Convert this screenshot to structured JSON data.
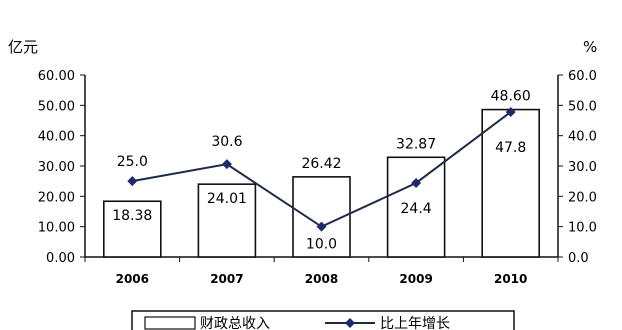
{
  "chart_data": {
    "type": "bar",
    "categories": [
      "2006",
      "2007",
      "2008",
      "2009",
      "2010"
    ],
    "series": [
      {
        "name": "财政总收入",
        "type": "bar",
        "axis": "left",
        "values": [
          18.38,
          24.01,
          26.42,
          32.87,
          48.6
        ],
        "labels": [
          "18.38",
          "24.01",
          "26.42",
          "32.87",
          "48.60"
        ]
      },
      {
        "name": "比上年增长",
        "type": "line",
        "axis": "right",
        "values": [
          25.0,
          30.6,
          10.0,
          24.4,
          47.8
        ],
        "labels": [
          "25.0",
          "30.6",
          "10.0",
          "24.4",
          "47.8"
        ]
      }
    ],
    "ylabel_left": "亿元",
    "ylabel_right": "%",
    "ylim_left": [
      0,
      60
    ],
    "ylim_right": [
      0,
      60
    ],
    "yticks_left": [
      "0.00",
      "10.00",
      "20.00",
      "30.00",
      "40.00",
      "50.00",
      "60.00"
    ],
    "yticks_right": [
      "0.0",
      "10.0",
      "20.0",
      "30.0",
      "40.0",
      "50.0",
      "60.0"
    ],
    "grid": false,
    "legend_position": "bottom",
    "colors": {
      "bar_fill": "#ffffff",
      "bar_stroke": "#111111",
      "line": "#1f2a44",
      "marker": "#1f2a6e"
    }
  }
}
